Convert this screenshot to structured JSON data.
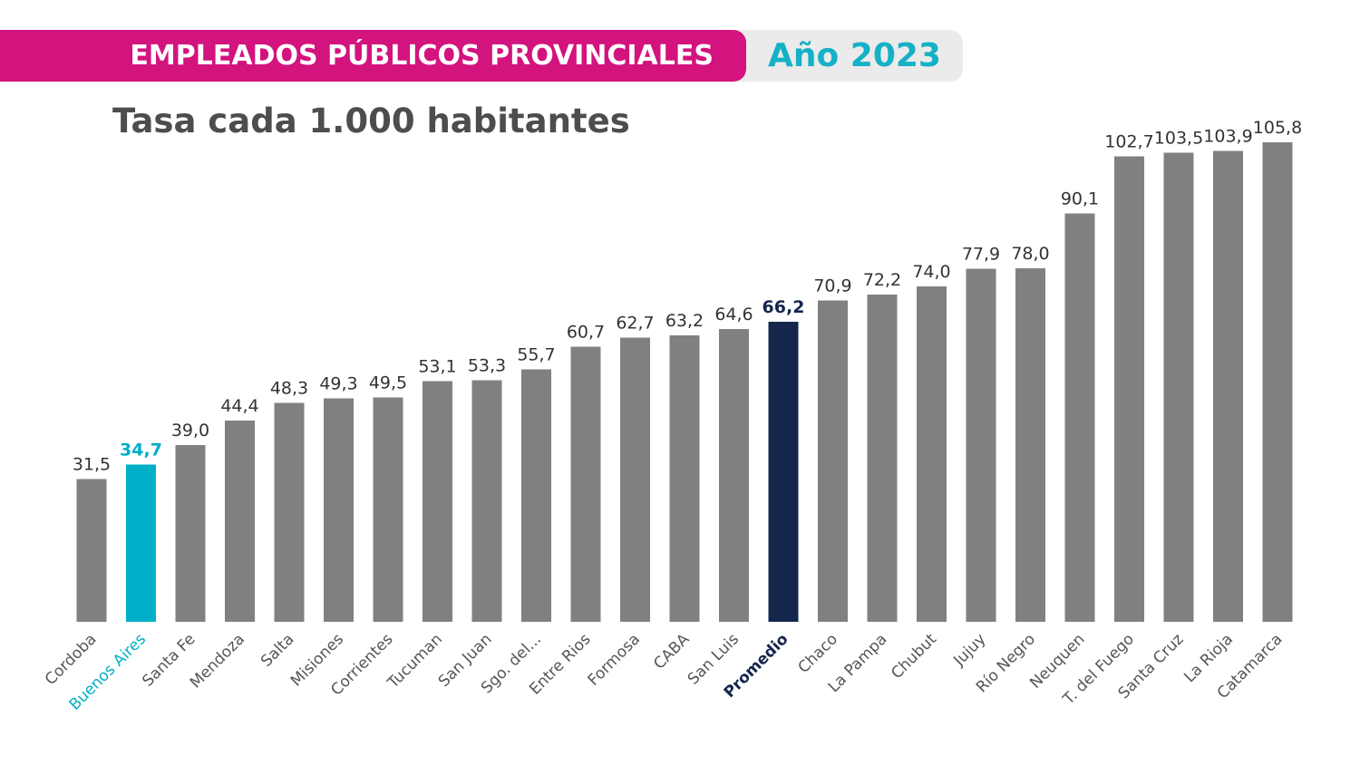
{
  "header": {
    "title": "EMPLEADOS PÚBLICOS PROVINCIALES",
    "year": "Año 2023"
  },
  "colors": {
    "bar_default": "#808080",
    "bar_highlight": "#00afc7",
    "bar_average": "#15264d",
    "header_pink": "#d3137e",
    "header_gray": "#ebebeb",
    "year_text": "#15b1c6"
  },
  "chart_data": {
    "type": "bar",
    "title": "Tasa cada 1.000 habitantes",
    "xlabel": "",
    "ylabel": "",
    "grid": false,
    "categories": [
      "Cordoba",
      "Buenos Aires",
      "Santa Fe",
      "Mendoza",
      "Salta",
      "Misiones",
      "Corrientes",
      "Tucuman",
      "San Juan",
      "Sgo. del...",
      "Entre Rios",
      "Formosa",
      "CABA",
      "San Luis",
      "Promedio",
      "Chaco",
      "La Pampa",
      "Chubut",
      "Jujuy",
      "Río Negro",
      "Neuquen",
      "T. del Fuego",
      "Santa Cruz",
      "La Rioja",
      "Catamarca"
    ],
    "values": [
      31.5,
      34.7,
      39.0,
      44.4,
      48.3,
      49.3,
      49.5,
      53.1,
      53.3,
      55.7,
      60.7,
      62.7,
      63.2,
      64.6,
      66.2,
      70.9,
      72.2,
      74.0,
      77.9,
      78.0,
      90.1,
      102.7,
      103.5,
      103.9,
      105.8
    ],
    "value_labels": [
      "31,5",
      "34,7",
      "39,0",
      "44,4",
      "48,3",
      "49,3",
      "49,5",
      "53,1",
      "53,3",
      "55,7",
      "60,7",
      "62,7",
      "63,2",
      "64,6",
      "66,2",
      "70,9",
      "72,2",
      "74,0",
      "77,9",
      "78,0",
      "90,1",
      "102,7",
      "103,5",
      "103,9",
      "105,8"
    ],
    "highlight": {
      "Buenos Aires": "highlight",
      "Promedio": "average"
    },
    "ylim": [
      0,
      110
    ]
  }
}
